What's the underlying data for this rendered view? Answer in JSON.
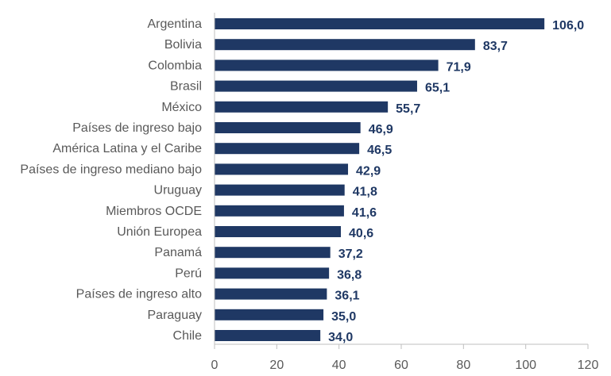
{
  "chart_data": {
    "type": "bar",
    "orientation": "horizontal",
    "categories": [
      "Argentina",
      "Bolivia",
      "Colombia",
      "Brasil",
      "México",
      "Países de ingreso bajo",
      "América Latina y el Caribe",
      "Países de ingreso mediano bajo",
      "Uruguay",
      "Miembros OCDE",
      "Unión Europea",
      "Panamá",
      "Perú",
      "Países de ingreso alto",
      "Paraguay",
      "Chile"
    ],
    "values": [
      106.0,
      83.7,
      71.9,
      65.1,
      55.7,
      46.9,
      46.5,
      42.9,
      41.8,
      41.6,
      40.6,
      37.2,
      36.8,
      36.1,
      35.0,
      34.0
    ],
    "value_labels": [
      "106,0",
      "83,7",
      "71,9",
      "65,1",
      "55,7",
      "46,9",
      "46,5",
      "42,9",
      "41,8",
      "41,6",
      "40,6",
      "37,2",
      "36,8",
      "36,1",
      "35,0",
      "34,0"
    ],
    "x_ticks": [
      0,
      20,
      40,
      60,
      80,
      100,
      120
    ],
    "xlim": [
      0,
      120
    ],
    "grid": false,
    "bar_color": "#1f3864",
    "label_color": "#1f3864",
    "text_color": "#595959",
    "title": "",
    "xlabel": "",
    "ylabel": ""
  }
}
